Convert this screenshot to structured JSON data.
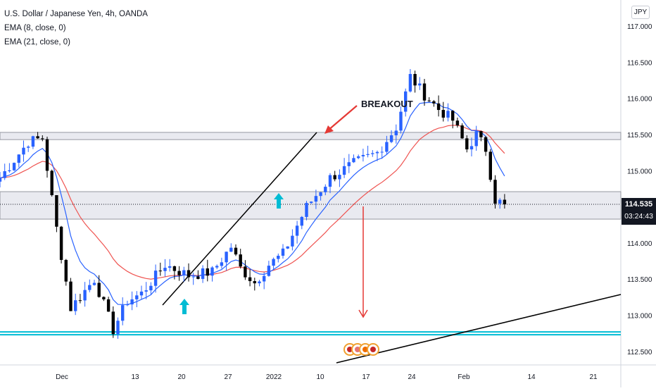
{
  "legend": {
    "symbol": "U.S. Dollar / Japanese Yen, 4h, OANDA",
    "ema_fast": "EMA (8, close, 0)",
    "ema_slow": "EMA (21, close, 0)"
  },
  "currency_badge": "JPY",
  "last_price": {
    "value": "114.535",
    "countdown": "03:24:43"
  },
  "annotation": "BREAKOUT",
  "colors": {
    "up_candle": "#2962ff",
    "down_candle": "#000000",
    "ema_fast": "#2962ff",
    "ema_slow": "#ef5350",
    "support_line": "#00bcd4",
    "arrow_red": "#e53935",
    "arrow_cyan": "#00bcd4",
    "zone_fill": "#e9eaf0"
  },
  "chart_data": {
    "type": "candlestick",
    "title": "U.S. Dollar / Japanese Yen, 4h, OANDA",
    "y_ticks": [
      112.5,
      113.0,
      113.5,
      114.0,
      114.5,
      115.0,
      115.5,
      116.0,
      116.5,
      117.0
    ],
    "y_tick_labels": [
      "112.500",
      "113.000",
      "113.500",
      "114.000",
      "114.500",
      "115.000",
      "115.500",
      "116.000",
      "116.500",
      "117.000"
    ],
    "x_tick_labels": [
      "Dec",
      "13",
      "20",
      "27",
      "2022",
      "10",
      "17",
      "24",
      "Feb",
      "14",
      "21"
    ],
    "price_anchors": [
      {
        "d": 0,
        "p": 114.9
      },
      {
        "d": 6,
        "p": 115.4
      },
      {
        "d": 9,
        "p": 115.45
      },
      {
        "d": 12,
        "p": 114.2
      },
      {
        "d": 15,
        "p": 113.1
      },
      {
        "d": 20,
        "p": 113.5
      },
      {
        "d": 24,
        "p": 112.8
      },
      {
        "d": 27,
        "p": 113.2
      },
      {
        "d": 30,
        "p": 113.3
      },
      {
        "d": 35,
        "p": 113.7
      },
      {
        "d": 40,
        "p": 113.55
      },
      {
        "d": 45,
        "p": 113.6
      },
      {
        "d": 49,
        "p": 113.95
      },
      {
        "d": 51,
        "p": 113.65
      },
      {
        "d": 54,
        "p": 113.45
      },
      {
        "d": 57,
        "p": 113.7
      },
      {
        "d": 60,
        "p": 113.85
      },
      {
        "d": 65,
        "p": 114.5
      },
      {
        "d": 70,
        "p": 114.9
      },
      {
        "d": 75,
        "p": 115.1
      },
      {
        "d": 80,
        "p": 115.25
      },
      {
        "d": 84,
        "p": 115.6
      },
      {
        "d": 87,
        "p": 116.3
      },
      {
        "d": 90,
        "p": 116.05
      },
      {
        "d": 93,
        "p": 115.85
      },
      {
        "d": 96,
        "p": 115.7
      },
      {
        "d": 99,
        "p": 115.3
      },
      {
        "d": 101,
        "p": 115.5
      },
      {
        "d": 103,
        "p": 115.3
      },
      {
        "d": 105,
        "p": 114.6
      },
      {
        "d": 107,
        "p": 114.53
      }
    ],
    "candle_count": 108,
    "zones": [
      {
        "from": 115.43,
        "to": 115.53
      },
      {
        "from": 114.33,
        "to": 114.71
      }
    ],
    "current_price": 114.535,
    "support_level": 112.75,
    "annotations": [
      "BREAKOUT"
    ]
  }
}
